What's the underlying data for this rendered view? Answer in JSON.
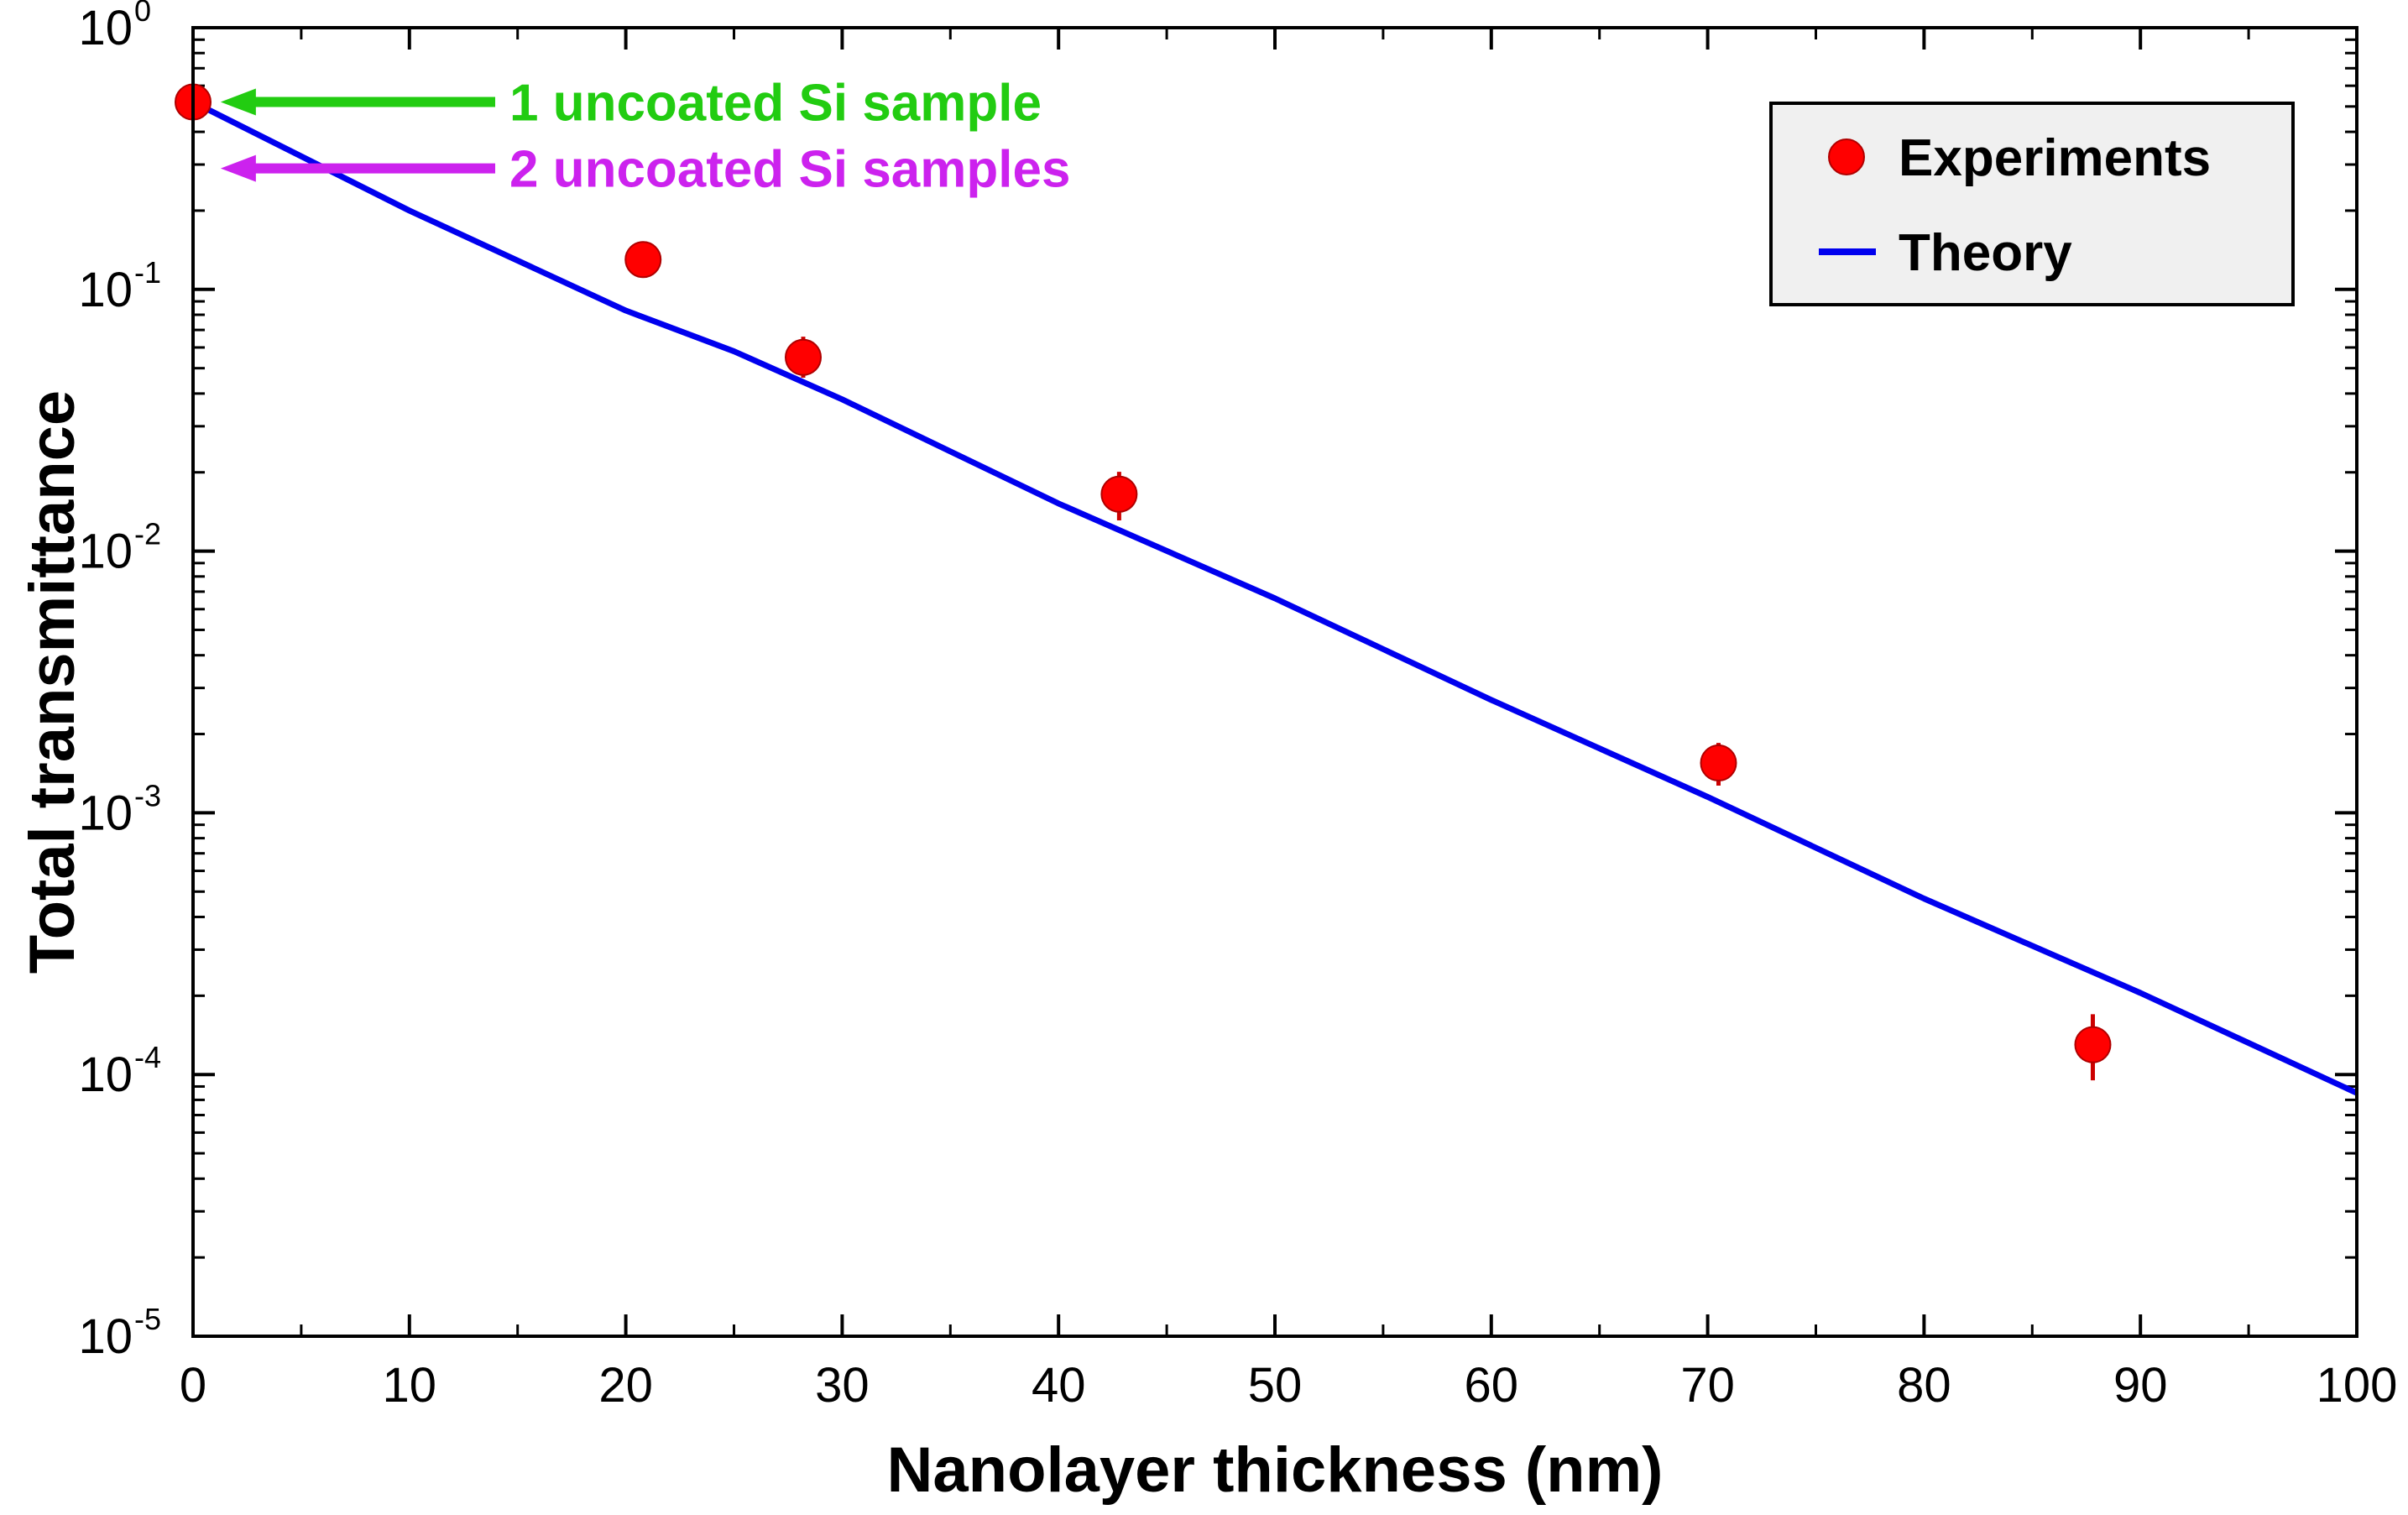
{
  "chart_data": {
    "type": "scatter",
    "title": "",
    "xlabel": "Nanolayer thickness (nm)",
    "ylabel": "Total transmittance",
    "xlim": [
      0,
      100
    ],
    "ylim": [
      1e-05,
      1
    ],
    "yscale": "log",
    "x_ticks": [
      0,
      10,
      20,
      30,
      40,
      50,
      60,
      70,
      80,
      90,
      100
    ],
    "x_tick_labels": [
      "0",
      "10",
      "20",
      "30",
      "40",
      "50",
      "60",
      "70",
      "80",
      "90",
      "100"
    ],
    "y_ticks": [
      {
        "value": 1,
        "base": "10",
        "exp": "0"
      },
      {
        "value": 0.1,
        "base": "10",
        "exp": "-1"
      },
      {
        "value": 0.01,
        "base": "10",
        "exp": "-2"
      },
      {
        "value": 0.001,
        "base": "10",
        "exp": "-3"
      },
      {
        "value": 0.0001,
        "base": "10",
        "exp": "-4"
      },
      {
        "value": 1e-05,
        "base": "10",
        "exp": "-5"
      }
    ],
    "series": [
      {
        "name": "Experiments",
        "kind": "scatter",
        "color": "#ff0000",
        "points": [
          {
            "x": 0,
            "y": 0.52,
            "err_low": 0.52,
            "err_high": 0.52
          },
          {
            "x": 20.8,
            "y": 0.13,
            "err_low": 0.13,
            "err_high": 0.13
          },
          {
            "x": 28.2,
            "y": 0.055,
            "err_low": 0.046,
            "err_high": 0.066
          },
          {
            "x": 42.8,
            "y": 0.0165,
            "err_low": 0.0131,
            "err_high": 0.0201
          },
          {
            "x": 70.5,
            "y": 0.00155,
            "err_low": 0.00127,
            "err_high": 0.00185
          },
          {
            "x": 87.8,
            "y": 0.00013,
            "err_low": 9.5e-05,
            "err_high": 0.00017
          }
        ]
      },
      {
        "name": "Theory",
        "kind": "line",
        "color": "#0000ee",
        "x": [
          0,
          10,
          20,
          25,
          30,
          40,
          50,
          60,
          70,
          80,
          90,
          100
        ],
        "y": [
          0.52,
          0.2,
          0.083,
          0.058,
          0.038,
          0.0152,
          0.0066,
          0.0027,
          0.00115,
          0.00047,
          0.000205,
          8.5e-05
        ]
      }
    ],
    "legend": {
      "position": "top-right",
      "background": "#f0f0f0"
    },
    "annotations": [
      {
        "text": "1 uncoated Si sample",
        "color": "#22cc11",
        "arrow_target": {
          "x": 0.5,
          "y": 0.52
        }
      },
      {
        "text": "2 uncoated Si samples",
        "color": "#cc22ee",
        "arrow_target": {
          "x": 0.5,
          "y": 0.29
        }
      }
    ]
  }
}
